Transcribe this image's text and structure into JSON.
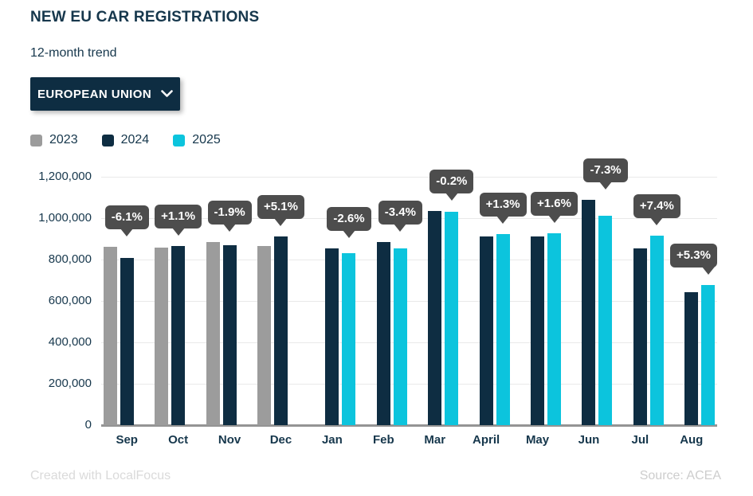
{
  "header": {
    "title": "NEW EU CAR REGISTRATIONS",
    "subtitle": "12-month trend"
  },
  "filter": {
    "label": "EUROPEAN UNION",
    "icon": "chevron-down-icon"
  },
  "legend": [
    {
      "label": "2023",
      "color": "#9c9c9c"
    },
    {
      "label": "2024",
      "color": "#0e2d42"
    },
    {
      "label": "2025",
      "color": "#0cc4dd"
    }
  ],
  "footer": {
    "left": "Created with LocalFocus",
    "right": "Source: ACEA"
  },
  "colors": {
    "text": "#16374c",
    "badge_bg": "#4d4d4d",
    "badge_text": "#ffffff",
    "gridline": "#e9e9e9",
    "axis_line": "#949494"
  },
  "chart_data": {
    "type": "bar",
    "title": "NEW EU CAR REGISTRATIONS",
    "subtitle": "12-month trend",
    "categories": [
      "Sep",
      "Oct",
      "Nov",
      "Dec",
      "Jan",
      "Feb",
      "Mar",
      "April",
      "May",
      "Jun",
      "Jul",
      "Aug"
    ],
    "series": [
      {
        "name": "2023",
        "color": "#9c9c9c",
        "values": [
          861000,
          857000,
          885000,
          866000,
          null,
          null,
          null,
          null,
          null,
          null,
          null,
          null
        ]
      },
      {
        "name": "2024",
        "color": "#0e2d42",
        "values": [
          809000,
          866000,
          868000,
          910000,
          853000,
          884000,
          1034000,
          912000,
          911000,
          1089000,
          852000,
          644000
        ]
      },
      {
        "name": "2025",
        "color": "#0cc4dd",
        "values": [
          null,
          null,
          null,
          null,
          831000,
          854000,
          1032000,
          924000,
          926000,
          1010000,
          915000,
          678000
        ]
      }
    ],
    "annotations": [
      "-6.1%",
      "+1.1%",
      "-1.9%",
      "+5.1%",
      "-2.6%",
      "-3.4%",
      "-0.2%",
      "+1.3%",
      "+1.6%",
      "-7.3%",
      "+7.4%",
      "+5.3%"
    ],
    "ylabel_ticks": [
      "0",
      "200,000",
      "400,000",
      "600,000",
      "800,000",
      "1,000,000",
      "1,200,000"
    ],
    "ytick_values": [
      0,
      200000,
      400000,
      600000,
      800000,
      1000000,
      1200000
    ],
    "ylim": [
      0,
      1200000
    ],
    "grid": true,
    "legend_position": "top-left"
  }
}
